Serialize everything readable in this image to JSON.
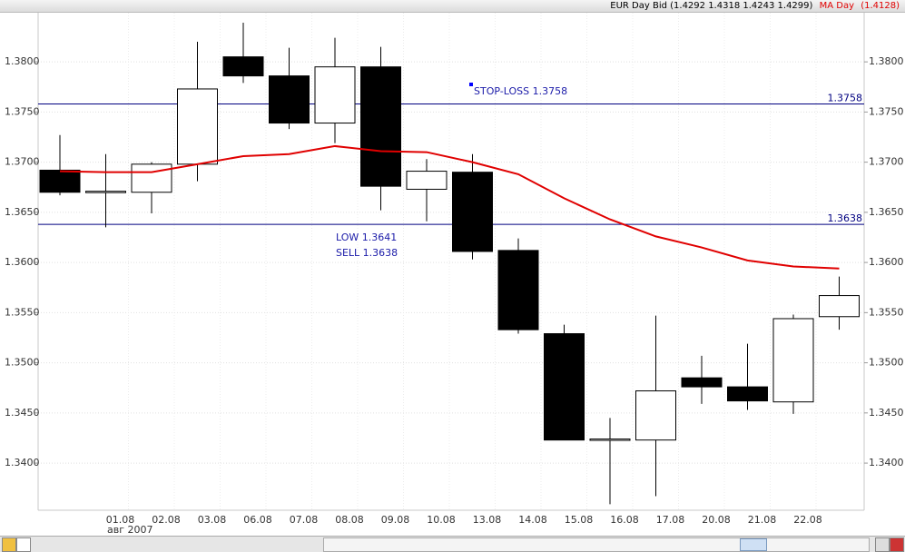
{
  "chart_data": {
    "type": "candlestick",
    "header": {
      "instrument": "EUR Day Bid (1.4292 1.4318 1.4243 1.4299)",
      "indicator": "MA Day",
      "indicator_value": "(1.4128)"
    },
    "period_label": "авг 2007",
    "categories": [
      null,
      "01.08",
      "02.08",
      "03.08",
      "06.08",
      "07.08",
      "08.08",
      "09.08",
      "10.08",
      "13.08",
      "14.08",
      "15.08",
      "16.08",
      "17.08",
      "20.08",
      "21.08",
      "22.08",
      null
    ],
    "open": [
      1.3692,
      1.3671,
      1.367,
      1.3698,
      1.3805,
      1.3786,
      1.3739,
      1.3795,
      1.3673,
      1.369,
      1.3612,
      1.3529,
      1.3424,
      1.3423,
      1.3485,
      1.3476,
      1.3461,
      1.3546
    ],
    "high": [
      1.3727,
      1.3708,
      1.37,
      1.382,
      1.3839,
      1.3814,
      1.3824,
      1.3815,
      1.3703,
      1.3708,
      1.3624,
      1.3538,
      1.3445,
      1.3547,
      1.3507,
      1.3519,
      1.3548,
      1.3586
    ],
    "low": [
      1.3667,
      1.3635,
      1.3649,
      1.3681,
      1.3779,
      1.3733,
      1.3719,
      1.3652,
      1.3641,
      1.3603,
      1.3529,
      1.3423,
      1.3359,
      1.3367,
      1.3459,
      1.3453,
      1.3449,
      1.3533
    ],
    "close": [
      1.367,
      1.3671,
      1.3698,
      1.3773,
      1.3786,
      1.3739,
      1.3795,
      1.3676,
      1.3691,
      1.3611,
      1.3533,
      1.3423,
      1.3424,
      1.3472,
      1.3476,
      1.3462,
      1.3544,
      1.3567
    ],
    "up_color": "#ffffff",
    "down_color": "#000000",
    "series": [
      {
        "name": "MA Day",
        "color": "#e00000",
        "values": [
          1.3691,
          1.369,
          1.369,
          1.3698,
          1.3706,
          1.3708,
          1.3716,
          1.3711,
          1.371,
          1.37,
          1.3688,
          1.3664,
          1.3643,
          1.3626,
          1.3615,
          1.3602,
          1.3596,
          1.3594
        ]
      }
    ],
    "hlines": [
      {
        "value": 1.3758,
        "color": "#000080"
      },
      {
        "value": 1.3638,
        "color": "#000080"
      }
    ],
    "annotations": [
      "STOP-LOSS 1.3758",
      "LOW 1.3641",
      "SELL 1.3638"
    ],
    "ylim": [
      1.3353,
      1.3849
    ],
    "yticks": [
      {
        "value": 1.34,
        "label": "1.3400"
      },
      {
        "value": 1.345,
        "label": "1.3450"
      },
      {
        "value": 1.35,
        "label": "1.3500"
      },
      {
        "value": 1.355,
        "label": "1.3550"
      },
      {
        "value": 1.36,
        "label": "1.3600"
      },
      {
        "value": 1.365,
        "label": "1.3650"
      },
      {
        "value": 1.37,
        "label": "1.3700"
      },
      {
        "value": 1.375,
        "label": "1.3750"
      },
      {
        "value": 1.38,
        "label": "1.3800"
      }
    ],
    "grid": true
  }
}
